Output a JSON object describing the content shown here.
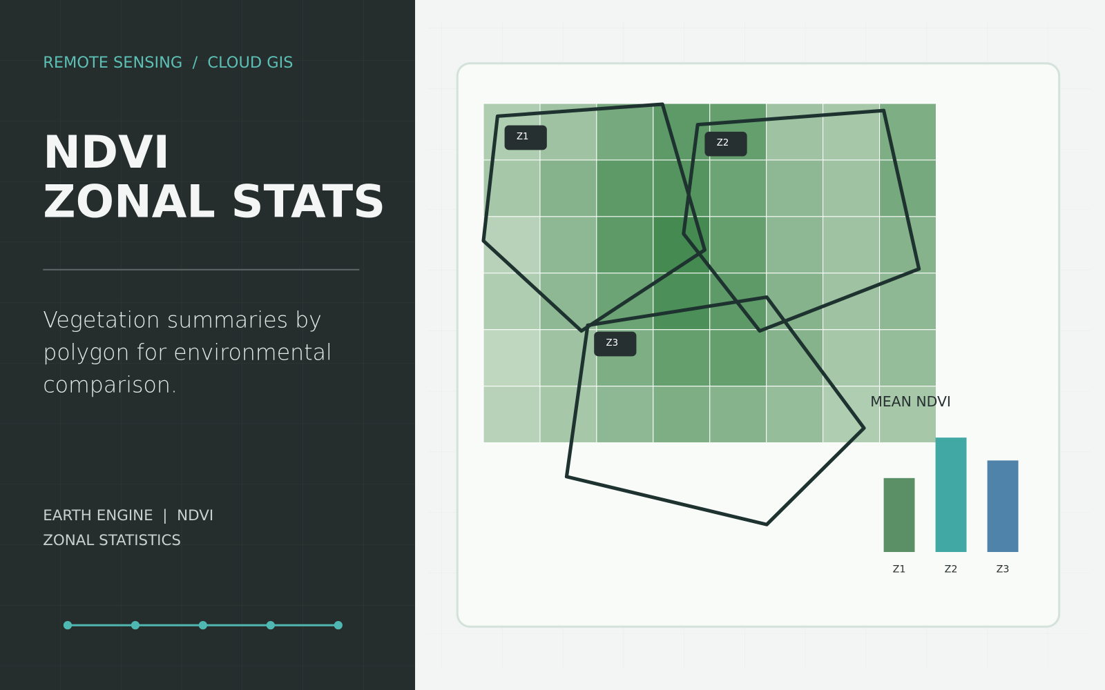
{
  "sidebar": {
    "breadcrumb": [
      "REMOTE SENSING",
      "CLOUD GIS"
    ],
    "breadcrumb_separator": "/",
    "title_lines": [
      "NDVI",
      "ZONAL STATS"
    ],
    "description": "Vegetation summaries by polygon for environmental comparison.",
    "footer_lines": [
      "EARTH ENGINE  |  NDVI",
      "ZONAL STATISTICS"
    ]
  },
  "map": {
    "zone_labels": [
      "Z1",
      "Z2",
      "Z3"
    ],
    "raster": {
      "values": [
        [
          0.25,
          0.35,
          0.6,
          0.75,
          0.7,
          0.35,
          0.3,
          0.55
        ],
        [
          0.3,
          0.5,
          0.75,
          0.8,
          0.65,
          0.45,
          0.35,
          0.6
        ],
        [
          0.2,
          0.45,
          0.75,
          0.9,
          0.7,
          0.45,
          0.35,
          0.5
        ],
        [
          0.25,
          0.45,
          0.65,
          0.85,
          0.75,
          0.5,
          0.35,
          0.45
        ],
        [
          0.15,
          0.35,
          0.55,
          0.7,
          0.7,
          0.5,
          0.3,
          0.4
        ],
        [
          0.2,
          0.3,
          0.45,
          0.55,
          0.5,
          0.4,
          0.25,
          0.3
        ]
      ]
    }
  },
  "chart_data": {
    "type": "bar",
    "title": "MEAN NDVI",
    "categories": [
      "Z1",
      "Z2",
      "Z3"
    ],
    "values": [
      0.42,
      0.65,
      0.52
    ],
    "colors": [
      "#5b8f66",
      "#42a8a3",
      "#5083aa"
    ]
  }
}
